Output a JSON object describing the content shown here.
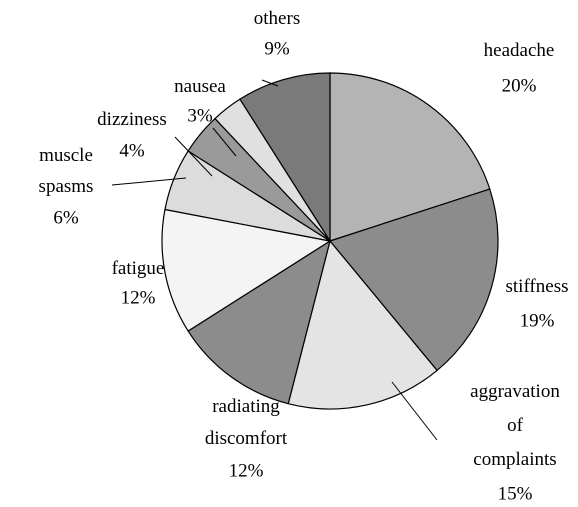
{
  "chart_data": {
    "type": "pie",
    "categories": [
      "headache",
      "stiffness",
      "aggravation of complaints",
      "radiating discomfort",
      "fatigue",
      "muscle spasms",
      "dizziness",
      "nausea",
      "others"
    ],
    "values": [
      20,
      19,
      15,
      12,
      12,
      6,
      4,
      3,
      9
    ],
    "value_labels": [
      "20%",
      "19%",
      "15%",
      "12%",
      "12%",
      "6%",
      "4%",
      "3%",
      "9%"
    ],
    "colors": [
      "#b4b4b4",
      "#8c8c8c",
      "#e4e4e4",
      "#8c8c8c",
      "#f4f4f4",
      "#dcdcdc",
      "#9a9a9a",
      "#e0e0e0",
      "#7a7a7a"
    ]
  }
}
